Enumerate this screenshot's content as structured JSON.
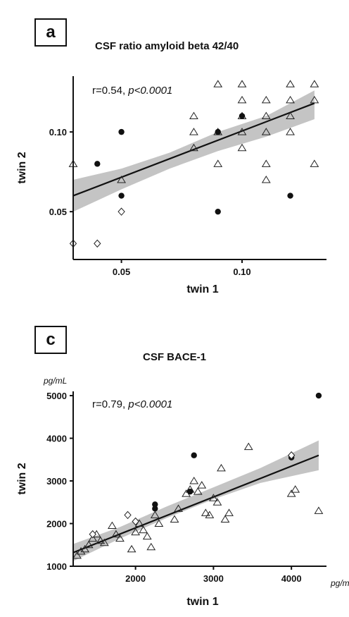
{
  "panels": [
    {
      "letter": "a",
      "title": "CSF ratio amyloid beta 42/40",
      "stat_r": "r=0.54,",
      "stat_p": "p<0.0001",
      "chart_data": {
        "type": "scatter",
        "title": "CSF ratio amyloid beta 42/40",
        "xlabel": "twin 1",
        "ylabel": "twin 2",
        "xlim": [
          0.03,
          0.135
        ],
        "ylim": [
          0.02,
          0.135
        ],
        "xticks": [
          {
            "value": 0.05,
            "label": "0.05"
          },
          {
            "value": 0.1,
            "label": "0.10"
          }
        ],
        "yticks": [
          {
            "value": 0.05,
            "label": "0.05"
          },
          {
            "value": 0.1,
            "label": "0.10"
          }
        ],
        "annotation": "r=0.54, p<0.0001",
        "grid": false,
        "regression": {
          "x": [
            0.03,
            0.13
          ],
          "y": [
            0.06,
            0.118
          ]
        },
        "confidence_band": {
          "x": [
            0.03,
            0.05,
            0.07,
            0.09,
            0.11,
            0.13
          ],
          "upper": [
            0.07,
            0.077,
            0.087,
            0.1,
            0.11,
            0.126
          ],
          "lower": [
            0.05,
            0.064,
            0.077,
            0.088,
            0.097,
            0.108
          ]
        },
        "series": [
          {
            "marker": "triangle",
            "points": [
              [
                0.03,
                0.08
              ],
              [
                0.05,
                0.07
              ],
              [
                0.08,
                0.09
              ],
              [
                0.08,
                0.1
              ],
              [
                0.08,
                0.11
              ],
              [
                0.09,
                0.08
              ],
              [
                0.09,
                0.1
              ],
              [
                0.09,
                0.13
              ],
              [
                0.1,
                0.09
              ],
              [
                0.1,
                0.1
              ],
              [
                0.1,
                0.11
              ],
              [
                0.1,
                0.12
              ],
              [
                0.1,
                0.13
              ],
              [
                0.11,
                0.07
              ],
              [
                0.11,
                0.08
              ],
              [
                0.11,
                0.1
              ],
              [
                0.11,
                0.11
              ],
              [
                0.11,
                0.12
              ],
              [
                0.12,
                0.1
              ],
              [
                0.12,
                0.11
              ],
              [
                0.12,
                0.12
              ],
              [
                0.12,
                0.13
              ],
              [
                0.13,
                0.08
              ],
              [
                0.13,
                0.12
              ],
              [
                0.13,
                0.13
              ]
            ]
          },
          {
            "marker": "filled-circle",
            "points": [
              [
                0.04,
                0.08
              ],
              [
                0.05,
                0.06
              ],
              [
                0.05,
                0.1
              ],
              [
                0.09,
                0.05
              ],
              [
                0.09,
                0.1
              ],
              [
                0.1,
                0.11
              ],
              [
                0.12,
                0.06
              ]
            ]
          },
          {
            "marker": "diamond",
            "points": [
              [
                0.03,
                0.03
              ],
              [
                0.04,
                0.03
              ],
              [
                0.05,
                0.05
              ]
            ]
          }
        ]
      }
    },
    {
      "letter": "c",
      "title": "CSF BACE-1",
      "unit_y": "pg/mL",
      "unit_x": "pg/mL",
      "stat_r": "r=0.79,",
      "stat_p": "p<0.0001",
      "chart_data": {
        "type": "scatter",
        "title": "CSF BACE-1",
        "xlabel": "twin 1",
        "ylabel": "twin 2",
        "xlim": [
          1200,
          4450
        ],
        "ylim": [
          1000,
          5100
        ],
        "xticks": [
          {
            "value": 2000,
            "label": "2000"
          },
          {
            "value": 3000,
            "label": "3000"
          },
          {
            "value": 4000,
            "label": "4000"
          }
        ],
        "yticks": [
          {
            "value": 1000,
            "label": "1000"
          },
          {
            "value": 2000,
            "label": "2000"
          },
          {
            "value": 3000,
            "label": "3000"
          },
          {
            "value": 4000,
            "label": "4000"
          },
          {
            "value": 5000,
            "label": "5000"
          }
        ],
        "annotation": "r=0.79, p<0.0001",
        "grid": false,
        "regression": {
          "x": [
            1200,
            4350
          ],
          "y": [
            1320,
            3600
          ]
        },
        "confidence_band": {
          "x": [
            1200,
            1800,
            2400,
            3000,
            3600,
            4350
          ],
          "upper": [
            1520,
            1920,
            2400,
            2850,
            3300,
            3950
          ],
          "lower": [
            1120,
            1650,
            2130,
            2570,
            2950,
            3250
          ]
        },
        "series": [
          {
            "marker": "triangle",
            "points": [
              [
                1250,
                1250
              ],
              [
                1300,
                1350
              ],
              [
                1350,
                1400
              ],
              [
                1400,
                1500
              ],
              [
                1450,
                1650
              ],
              [
                1500,
                1750
              ],
              [
                1550,
                1600
              ],
              [
                1600,
                1550
              ],
              [
                1700,
                1950
              ],
              [
                1750,
                1750
              ],
              [
                1800,
                1650
              ],
              [
                1950,
                1400
              ],
              [
                2000,
                1800
              ],
              [
                2050,
                2000
              ],
              [
                2100,
                1850
              ],
              [
                2150,
                1700
              ],
              [
                2200,
                1450
              ],
              [
                2250,
                2200
              ],
              [
                2300,
                2000
              ],
              [
                2500,
                2100
              ],
              [
                2550,
                2350
              ],
              [
                2650,
                2700
              ],
              [
                2700,
                2800
              ],
              [
                2750,
                3000
              ],
              [
                2800,
                2750
              ],
              [
                2850,
                2900
              ],
              [
                2900,
                2250
              ],
              [
                2950,
                2200
              ],
              [
                3000,
                2600
              ],
              [
                3050,
                2500
              ],
              [
                3100,
                3300
              ],
              [
                3150,
                2100
              ],
              [
                3200,
                2250
              ],
              [
                3450,
                3800
              ],
              [
                4000,
                2700
              ],
              [
                4050,
                2800
              ],
              [
                4350,
                2300
              ]
            ]
          },
          {
            "marker": "filled-circle",
            "points": [
              [
                2250,
                2450
              ],
              [
                2250,
                2350
              ],
              [
                2700,
                2750
              ],
              [
                2750,
                3600
              ],
              [
                4000,
                3550
              ],
              [
                4350,
                5000
              ]
            ]
          },
          {
            "marker": "diamond",
            "points": [
              [
                1450,
                1750
              ],
              [
                1900,
                2200
              ],
              [
                2000,
                2050
              ],
              [
                4000,
                3600
              ]
            ]
          }
        ]
      }
    }
  ]
}
